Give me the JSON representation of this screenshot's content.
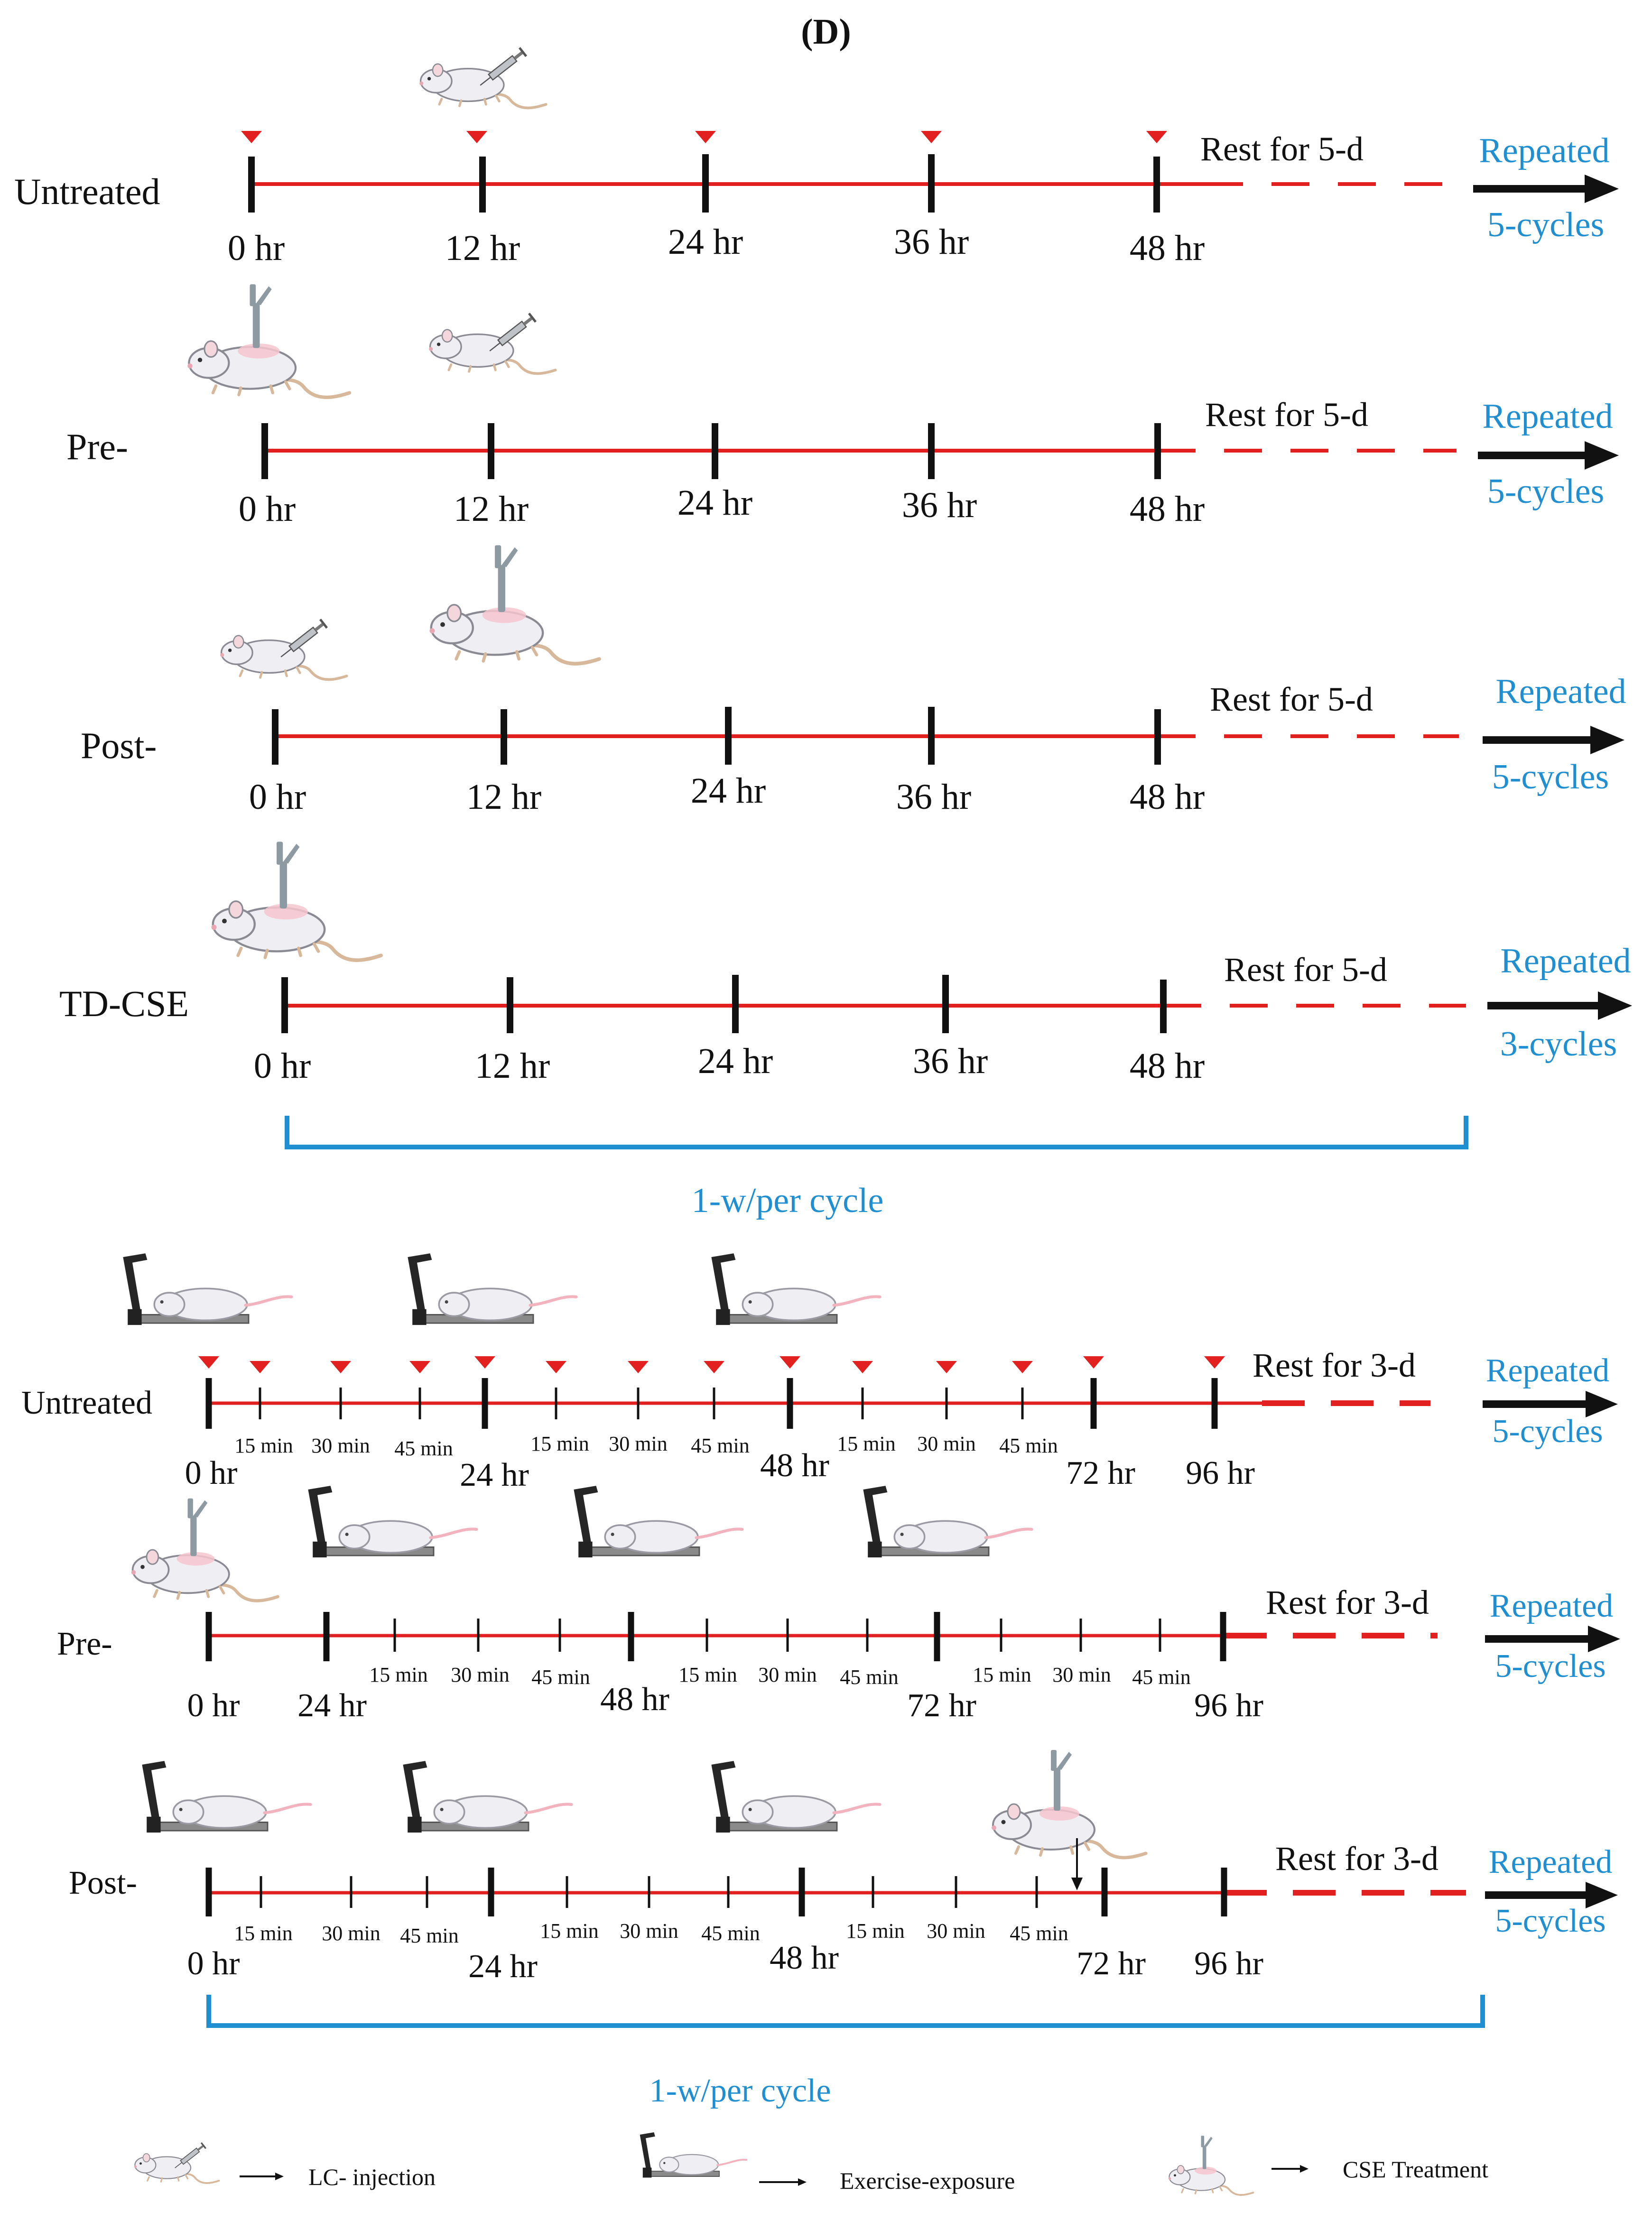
{
  "title": "(D)",
  "colors": {
    "timeline": "#e32020",
    "tick": "#111111",
    "accent": "#1f8fd1",
    "marker": "#e32020"
  },
  "top_section": {
    "rows": [
      {
        "label": "Untreated",
        "ticks": [
          "0 hr",
          "12 hr",
          "24 hr",
          "36 hr",
          "48 hr"
        ],
        "rest": "Rest for 5-d",
        "repeated": "Repeated",
        "cycles": "5-cycles"
      },
      {
        "label": "Pre-",
        "ticks": [
          "0 hr",
          "12 hr",
          "24 hr",
          "36 hr",
          "48 hr"
        ],
        "rest": "Rest for 5-d",
        "repeated": "Repeated",
        "cycles": "5-cycles"
      },
      {
        "label": "Post-",
        "ticks": [
          "0 hr",
          "12 hr",
          "24 hr",
          "36 hr",
          "48 hr"
        ],
        "rest": "Rest for 5-d",
        "repeated": "Repeated",
        "cycles": "5-cycles"
      },
      {
        "label": "TD-CSE",
        "ticks": [
          "0 hr",
          "12 hr",
          "24 hr",
          "36 hr",
          "48 hr"
        ],
        "rest": "Rest for 5-d",
        "repeated": "Repeated",
        "cycles": "3-cycles"
      }
    ],
    "cycle_label": "1-w/per cycle"
  },
  "bottom_section": {
    "rows": [
      {
        "label": "Untreated",
        "ticks": [
          "0 hr",
          "24 hr",
          "48 hr",
          "72 hr",
          "96 hr"
        ],
        "minutes": [
          "15 min",
          "30 min",
          "45 min"
        ],
        "rest": "Rest for 3-d",
        "repeated": "Repeated",
        "cycles": "5-cycles"
      },
      {
        "label": "Pre-",
        "ticks": [
          "0 hr",
          "24 hr",
          "48 hr",
          "72 hr",
          "96 hr"
        ],
        "minutes": [
          "15 min",
          "30 min",
          "45 min"
        ],
        "rest": "Rest for 3-d",
        "repeated": "Repeated",
        "cycles": "5-cycles"
      },
      {
        "label": "Post-",
        "ticks": [
          "0 hr",
          "24 hr",
          "48 hr",
          "72 hr",
          "96 hr"
        ],
        "minutes": [
          "15 min",
          "30 min",
          "45 min"
        ],
        "rest": "Rest for 3-d",
        "repeated": "Repeated",
        "cycles": "5-cycles"
      }
    ],
    "cycle_label": "1-w/per cycle"
  },
  "legend": {
    "injection": "LC- injection",
    "exercise": "Exercise-exposure",
    "cse": "CSE Treatment"
  }
}
